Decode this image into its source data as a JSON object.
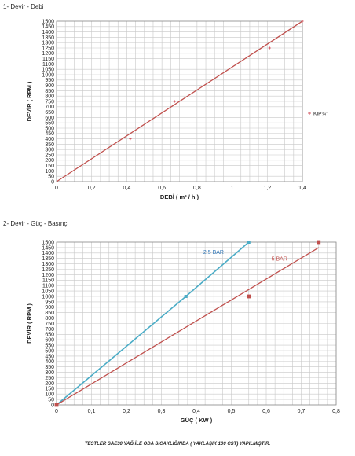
{
  "sections": {
    "top_title": "1- Devir - Debi",
    "bottom_title": "2- Devir - Güç - Basınç"
  },
  "footnote": "TESTLER SAE30 YAĞ İLE ODA SICAKLIĞINDA ( YAKLAŞIK 100 CST) YAPILMIŞTIR.",
  "chart_data": [
    {
      "type": "scatter",
      "title": "1- Devir - Debi",
      "xlabel": "DEBİ ( m³ / h )",
      "ylabel": "DEVİR ( RPM )",
      "xlim": [
        0,
        1.5
      ],
      "ylim": [
        0,
        1500
      ],
      "xticks": [
        "0",
        "0,2",
        "0,4",
        "0,6",
        "0,8",
        "1",
        "1,2",
        "1,4"
      ],
      "yticks": [
        "0",
        "50",
        "100",
        "150",
        "200",
        "250",
        "300",
        "350",
        "400",
        "450",
        "500",
        "550",
        "600",
        "650",
        "700",
        "750",
        "800",
        "850",
        "900",
        "950",
        "1000",
        "1050",
        "1100",
        "1150",
        "1200",
        "1250",
        "1300",
        "1350",
        "1400",
        "1450",
        "1500"
      ],
      "grid": true,
      "legend_position": "right",
      "series": [
        {
          "name": "KIP¾\"",
          "color": "#d24d5a",
          "points": [
            {
              "x": 0.45,
              "y": 400
            },
            {
              "x": 0.72,
              "y": 750
            },
            {
              "x": 1.3,
              "y": 1250
            },
            {
              "x": 1.5,
              "y": 1500
            }
          ]
        }
      ],
      "trendline": {
        "color": "#c0504d",
        "from": [
          0,
          0
        ],
        "to": [
          1.5,
          1500
        ]
      }
    },
    {
      "type": "line",
      "title": "2- Devir - Güç - Basınç",
      "xlabel": "GÜÇ ( KW )",
      "ylabel": "DEVİR ( RPM )",
      "xlim": [
        0,
        0.8
      ],
      "ylim": [
        0,
        1500
      ],
      "xticks": [
        "0",
        "0,1",
        "0,2",
        "0,3",
        "0,4",
        "0,5",
        "0,6",
        "0,7",
        "0,8"
      ],
      "yticks": [
        "0",
        "50",
        "100",
        "150",
        "200",
        "250",
        "300",
        "350",
        "400",
        "450",
        "500",
        "550",
        "600",
        "650",
        "700",
        "750",
        "800",
        "850",
        "900",
        "950",
        "1000",
        "1050",
        "1100",
        "1150",
        "1200",
        "1250",
        "1300",
        "1350",
        "1400",
        "1450",
        "1500"
      ],
      "grid": true,
      "series": [
        {
          "name": "2,5 BAR",
          "color": "#4bacc6",
          "label_color": "#2e75b6",
          "points": [
            {
              "x": 0,
              "y": 0
            },
            {
              "x": 0.37,
              "y": 1000
            },
            {
              "x": 0.55,
              "y": 1500
            }
          ]
        },
        {
          "name": "5 BAR",
          "color": "#c0504d",
          "label_color": "#c0504d",
          "points": [
            {
              "x": 0,
              "y": 0
            },
            {
              "x": 0.55,
              "y": 1000
            },
            {
              "x": 0.75,
              "y": 1500
            }
          ],
          "trendline": {
            "from": [
              0,
              0
            ],
            "to": [
              0.75,
              1450
            ]
          }
        }
      ]
    }
  ]
}
